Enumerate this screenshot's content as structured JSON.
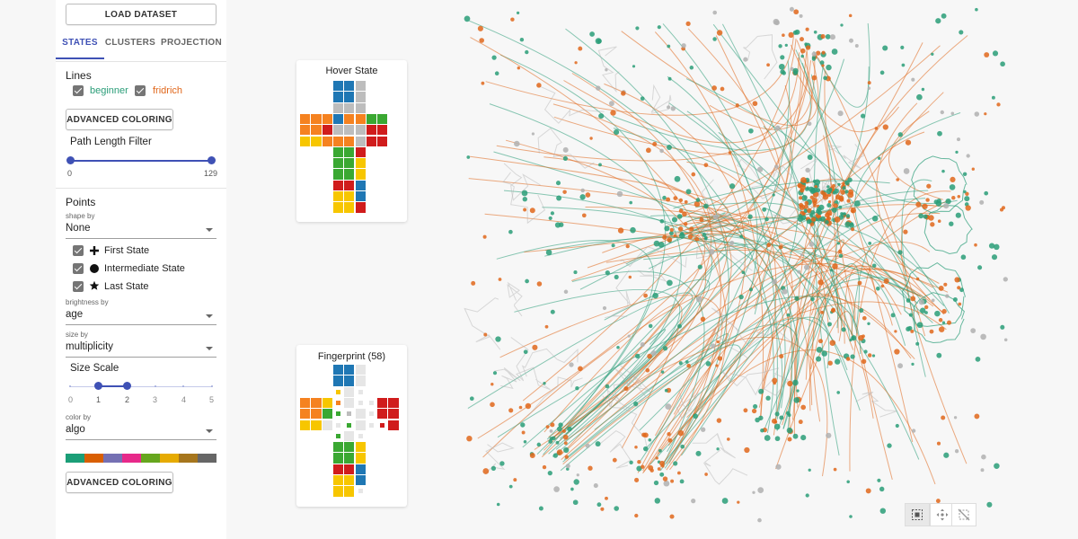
{
  "buttons": {
    "load_dataset": "LOAD DATASET",
    "advanced_coloring_lines": "ADVANCED COLORING",
    "advanced_coloring_points": "ADVANCED COLORING"
  },
  "tabs": [
    {
      "label": "STATES",
      "active": true
    },
    {
      "label": "CLUSTERS",
      "active": false
    },
    {
      "label": "PROJECTION",
      "active": false
    }
  ],
  "lines": {
    "heading": "Lines",
    "datasets": [
      {
        "label": "beginner",
        "color": "#2a9d78",
        "checked": true
      },
      {
        "label": "fridrich",
        "color": "#e0671b",
        "checked": true
      }
    ],
    "path_length_filter": {
      "label": "Path Length Filter",
      "min": "0",
      "max": "129",
      "low": 0,
      "high": 129
    }
  },
  "points": {
    "heading": "Points",
    "shape_by": {
      "label": "shape by",
      "value": "None"
    },
    "states": [
      {
        "label": "First State",
        "icon": "plus-icon",
        "checked": true
      },
      {
        "label": "Intermediate State",
        "icon": "circle-icon",
        "checked": true
      },
      {
        "label": "Last State",
        "icon": "star-icon",
        "checked": true
      }
    ],
    "brightness_by": {
      "label": "brightness by",
      "value": "age"
    },
    "size_by": {
      "label": "size by",
      "value": "multiplicity"
    },
    "size_scale": {
      "label": "Size Scale",
      "ticks": [
        "0",
        "1",
        "2",
        "3",
        "4",
        "5"
      ],
      "low": 1,
      "high": 2
    },
    "color_by": {
      "label": "color by",
      "value": "algo"
    },
    "palette": [
      "#1b9e77",
      "#d95f02",
      "#7570b3",
      "#e7298a",
      "#66a61e",
      "#e6ab02",
      "#a6761d",
      "#666666"
    ]
  },
  "hover_state": {
    "title": "Hover State"
  },
  "fingerprint": {
    "title": "Fingerprint (58)"
  },
  "colors": {
    "accent": "#3f51b5",
    "beginner": "#2a9d78",
    "fridrich": "#e0671b",
    "gray_point": "#b0b0b0"
  },
  "toolbar": [
    {
      "icon": "select-box-icon",
      "active": true
    },
    {
      "icon": "move-icon",
      "active": false
    },
    {
      "icon": "no-select-icon",
      "active": false
    }
  ]
}
